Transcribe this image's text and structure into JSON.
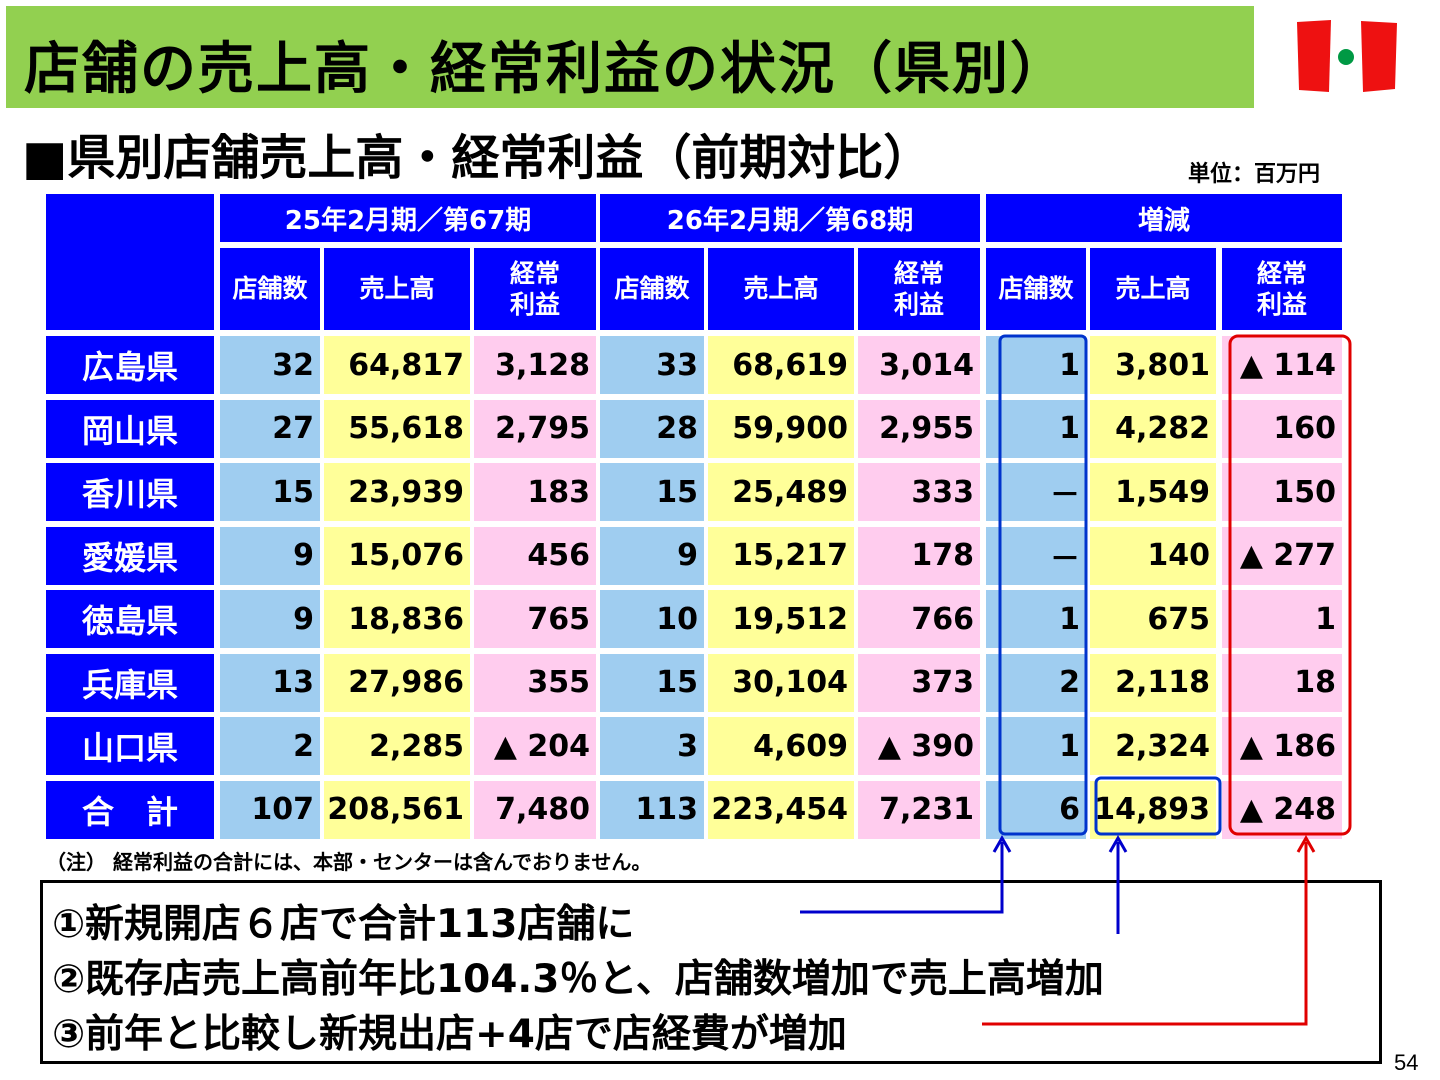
{
  "title": "店舗の売上高・経常利益の状況（県別）",
  "subtitle": "■県別店舗売上高・経常利益（前期対比）",
  "unit": "単位：百万円",
  "table": {
    "group_headers": [
      "25年2月期／第67期",
      "26年2月期／第68期",
      "増減"
    ],
    "sub_headers": [
      "店舗数",
      "売上高",
      "経常利益"
    ],
    "rows": [
      {
        "name": "広島県",
        "values": [
          "32",
          "64,817",
          "3,128",
          "33",
          "68,619",
          "3,014",
          "1",
          "3,801",
          "▲ 114"
        ]
      },
      {
        "name": "岡山県",
        "values": [
          "27",
          "55,618",
          "2,795",
          "28",
          "59,900",
          "2,955",
          "1",
          "4,282",
          "160"
        ]
      },
      {
        "name": "香川県",
        "values": [
          "15",
          "23,939",
          "183",
          "15",
          "25,489",
          "333",
          "－",
          "1,549",
          "150"
        ]
      },
      {
        "name": "愛媛県",
        "values": [
          "9",
          "15,076",
          "456",
          "9",
          "15,217",
          "178",
          "－",
          "140",
          "▲ 277"
        ]
      },
      {
        "name": "徳島県",
        "values": [
          "9",
          "18,836",
          "765",
          "10",
          "19,512",
          "766",
          "1",
          "675",
          "1"
        ]
      },
      {
        "name": "兵庫県",
        "values": [
          "13",
          "27,986",
          "355",
          "15",
          "30,104",
          "373",
          "2",
          "2,118",
          "18"
        ]
      },
      {
        "name": "山口県",
        "values": [
          "2",
          "2,285",
          "▲ 204",
          "3",
          "4,609",
          "▲ 390",
          "1",
          "2,324",
          "▲ 186"
        ]
      },
      {
        "name": "合　計",
        "values": [
          "107",
          "208,561",
          "7,480",
          "113",
          "223,454",
          "7,231",
          "6",
          "14,893",
          "▲ 248"
        ]
      }
    ]
  },
  "note": "（注） 経常利益の合計には、本部・センターは含んでおりません。",
  "bullets": [
    "①新規開店６店で合計113店舗に",
    "②既存店売上高前年比104.3％と、店舗数増加で売上高増加",
    "③前年と比較し新規出店+4店で店経費が増加"
  ],
  "page_number": "54",
  "colors": {
    "title_bar": "#92d050",
    "header_blue": "#0000ff",
    "store_count_cell": "#9fcdf0",
    "sales_cell": "#ffff99",
    "profit_cell": "#ffccee",
    "arrow_blue": "#0000cc",
    "arrow_red": "#e00000"
  }
}
